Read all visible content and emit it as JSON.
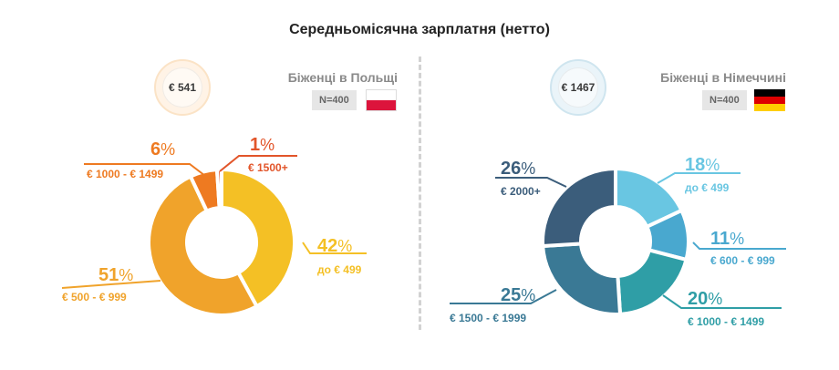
{
  "title": "Середньомісячна зарплатня (нетто)",
  "colors": {
    "poland": [
      "#f4c025",
      "#f0a32b",
      "#ee7a21",
      "#e2552a"
    ],
    "germany": [
      "#69c6e2",
      "#49a8cf",
      "#2f9ea6",
      "#3a7995",
      "#3b5d7b"
    ]
  },
  "icons": {
    "poland_flag": "poland-flag-icon",
    "germany_flag": "germany-flag-icon"
  },
  "chart_data": [
    {
      "type": "pie",
      "title": "Біженці в Польщі",
      "sample": "N=400",
      "average": "€ 541",
      "categories": [
        "до € 499",
        "€ 500 - € 999",
        "€ 1000 - € 1499",
        "€ 1500+"
      ],
      "values": [
        42,
        51,
        6,
        1
      ],
      "value_labels": [
        "42",
        "51",
        "6",
        "1"
      ],
      "unit": "%"
    },
    {
      "type": "pie",
      "title": "Біженці в Німеччині",
      "sample": "N=400",
      "average": "€ 1467",
      "categories": [
        "до € 499",
        "€ 600 - € 999",
        "€ 1000 - € 1499",
        "€ 1500 - € 1999",
        "€ 2000+"
      ],
      "values": [
        18,
        11,
        20,
        25,
        26
      ],
      "value_labels": [
        "18",
        "11",
        "20",
        "25",
        "26"
      ],
      "unit": "%"
    }
  ]
}
